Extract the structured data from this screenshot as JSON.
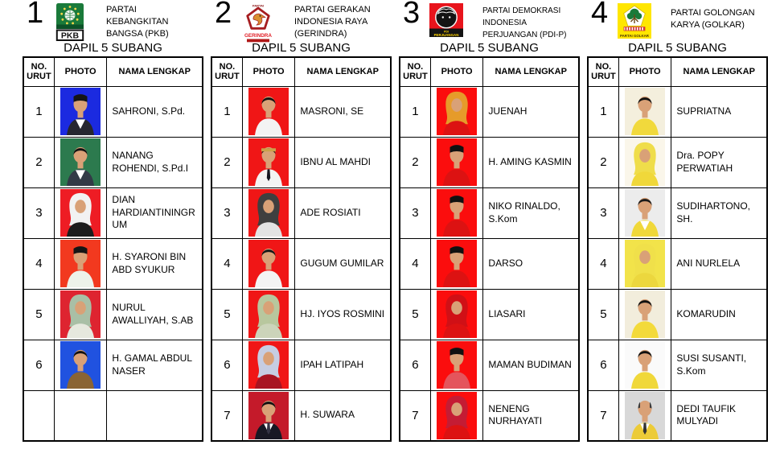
{
  "table_columns": [
    "NO. URUT",
    "PHOTO",
    "NAMA LENGKAP"
  ],
  "parties": [
    {
      "number": "1",
      "name": "PARTAI KEBANGKITAN BANGSA (PKB)",
      "dapil": "DAPIL 5 SUBANG",
      "logo": {
        "type": "pkb",
        "labels": [
          "PKB"
        ],
        "colors": {
          "primary": "#1a7a3a",
          "accent": "#ffd84a"
        }
      },
      "candidates": [
        {
          "no": "1",
          "name": "SAHRONI, S.Pd.",
          "photo": {
            "bg": "#1b2ae0",
            "attire": "#262630",
            "shirt": "#ffffff",
            "head": "cap",
            "head_color": "#151515"
          }
        },
        {
          "no": "2",
          "name": "NANANG ROHENDI, S.Pd.I",
          "photo": {
            "bg": "#2c7a4e",
            "attire": "#323a46",
            "shirt": "#ffffff",
            "head": "hair",
            "head_color": "#111111"
          }
        },
        {
          "no": "3",
          "name": "DIAN HARDIANTININGRUM",
          "photo": {
            "bg": "#ee1c24",
            "attire": "#1d1d1d",
            "head": "hijab",
            "head_color": "#f2f2f2"
          }
        },
        {
          "no": "4",
          "name": "H. SYARONI BIN ABD SYUKUR",
          "photo": {
            "bg": "#f2391f",
            "attire": "#edf2ea",
            "head": "cap",
            "head_color": "#151515"
          }
        },
        {
          "no": "5",
          "name": "NURUL AWALLIYAH, S.AB",
          "photo": {
            "bg": "#de2430",
            "attire": "#e6e8de",
            "head": "hijab",
            "head_color": "#a9bfa6"
          }
        },
        {
          "no": "6",
          "name": "H. GAMAL ABDUL NASER",
          "photo": {
            "bg": "#2052e0",
            "attire": "#8a6434",
            "head": "hair",
            "head_color": "#111111"
          }
        },
        {
          "no": "",
          "name": "",
          "photo": null
        }
      ]
    },
    {
      "number": "2",
      "name": "PARTAI GERAKAN INDONESIA RAYA (GERINDRA)",
      "dapil": "DAPIL 5 SUBANG",
      "logo": {
        "type": "gerindra",
        "labels": [
          "PARTAI",
          "GERINDRA"
        ],
        "colors": {
          "primary": "#e21e26",
          "accent": "#d89030"
        }
      },
      "candidates": [
        {
          "no": "1",
          "name": "MASRONI, SE",
          "photo": {
            "bg": "#f01616",
            "attire": "#f3f3f3",
            "head": "hair",
            "head_color": "#111111"
          }
        },
        {
          "no": "2",
          "name": "IBNU AL MAHDI",
          "photo": {
            "bg": "#f01616",
            "attire": "#f3f3f3",
            "tie": "#15151f",
            "head": "headband",
            "head_color": "#caa24a"
          }
        },
        {
          "no": "3",
          "name": "ADE ROSIATI",
          "photo": {
            "bg": "#f01616",
            "attire": "#e3e3e3",
            "head": "hijab",
            "head_color": "#3f3f3f"
          }
        },
        {
          "no": "4",
          "name": "GUGUM GUMILAR",
          "photo": {
            "bg": "#f01616",
            "attire": "#f3f3f3",
            "head": "hair",
            "head_color": "#161616"
          }
        },
        {
          "no": "5",
          "name": "HJ. IYOS ROSMINI",
          "photo": {
            "bg": "#f01616",
            "attire": "#ccd4ba",
            "head": "hijab",
            "head_color": "#b8c79e"
          }
        },
        {
          "no": "6",
          "name": "IPAH LATIPAH",
          "photo": {
            "bg": "#f01616",
            "attire": "#a81422",
            "head": "hijab",
            "head_color": "#c6cde2"
          }
        },
        {
          "no": "7",
          "name": "H. SUWARA",
          "photo": {
            "bg": "#c41a2a",
            "attire": "#181824",
            "shirt": "#ffffff",
            "tie": "#333344",
            "head": "hair",
            "head_color": "#111111"
          }
        }
      ]
    },
    {
      "number": "3",
      "name": "PARTAI DEMOKRASI INDONESIA PERJUANGAN (PDI-P)",
      "dapil": "DAPIL 5 SUBANG",
      "logo": {
        "type": "pdip",
        "labels": [
          "PDI",
          "PERJUANGAN"
        ],
        "colors": {
          "primary": "#e8141c",
          "accent": "#ffd400"
        }
      },
      "candidates": [
        {
          "no": "1",
          "name": "JUENAH",
          "photo": {
            "bg": "#fb0d0d",
            "attire": "#dc1212",
            "head": "hijab",
            "head_color": "#e69b2a"
          }
        },
        {
          "no": "2",
          "name": "H. AMING KASMIN",
          "photo": {
            "bg": "#fb0d0d",
            "attire": "#dc1212",
            "head": "cap",
            "head_color": "#111111"
          }
        },
        {
          "no": "3",
          "name": "NIKO RINALDO, S.Kom",
          "photo": {
            "bg": "#fb0d0d",
            "attire": "#dc1212",
            "head": "cap",
            "head_color": "#111111"
          }
        },
        {
          "no": "4",
          "name": "DARSO",
          "photo": {
            "bg": "#fb0d0d",
            "attire": "#dc1212",
            "head": "cap",
            "head_color": "#111111"
          }
        },
        {
          "no": "5",
          "name": "LIASARI",
          "photo": {
            "bg": "#fb0d0d",
            "attire": "#dc1212",
            "head": "hijab",
            "head_color": "#d01016"
          }
        },
        {
          "no": "6",
          "name": "MAMAN BUDIMAN",
          "photo": {
            "bg": "#fb0d0d",
            "attire": "#e4555c",
            "head": "cap",
            "head_color": "#111111"
          }
        },
        {
          "no": "7",
          "name": "NENENG NURHAYATI",
          "photo": {
            "bg": "#fb0d0d",
            "attire": "#dc1212",
            "head": "hijab",
            "head_color": "#c41c34"
          }
        }
      ]
    },
    {
      "number": "4",
      "name": "PARTAI GOLONGAN KARYA (GOLKAR)",
      "dapil": "DAPIL 5 SUBANG",
      "logo": {
        "type": "golkar",
        "labels": [
          "PARTAI GOLKAR"
        ],
        "colors": {
          "primary": "#ffe600",
          "accent": "#1a7a3a"
        }
      },
      "candidates": [
        {
          "no": "1",
          "name": "SUPRIATNA",
          "photo": {
            "bg": "#f4efdd",
            "attire": "#f1d93c",
            "head": "hair",
            "head_color": "#111111"
          }
        },
        {
          "no": "2",
          "name": "Dra. POPY PERWATIAH",
          "photo": {
            "bg": "#faf6ea",
            "attire": "#f0d83a",
            "head": "hijab",
            "head_color": "#efdd4a"
          }
        },
        {
          "no": "3",
          "name": "SUDIHARTONO, SH.",
          "photo": {
            "bg": "#ececec",
            "attire": "#f0d83a",
            "shirt": "#ffffff",
            "head": "hair",
            "head_color": "#1a1a1a"
          }
        },
        {
          "no": "4",
          "name": "ANI NURLELA",
          "photo": {
            "bg": "#f2e34a",
            "attire": "#ecd73e",
            "head": "hijab",
            "head_color": "#f0e04a"
          }
        },
        {
          "no": "5",
          "name": "KOMARUDIN",
          "photo": {
            "bg": "#f2eddc",
            "attire": "#f3da3a",
            "head": "hair",
            "head_color": "#111111"
          }
        },
        {
          "no": "6",
          "name": "SUSI SUSANTI, S.Kom",
          "photo": {
            "bg": "#fafafa",
            "attire": "#f0d83a",
            "head": "hair",
            "head_color": "#111111"
          }
        },
        {
          "no": "7",
          "name": "DEDI TAUFIK MULYADI",
          "photo": {
            "bg": "#d8d8d8",
            "attire": "#eccb38",
            "shirt": "#ffffff",
            "tie": "#333333",
            "head": "bald",
            "head_color": "#3a3a3a"
          }
        }
      ]
    }
  ]
}
